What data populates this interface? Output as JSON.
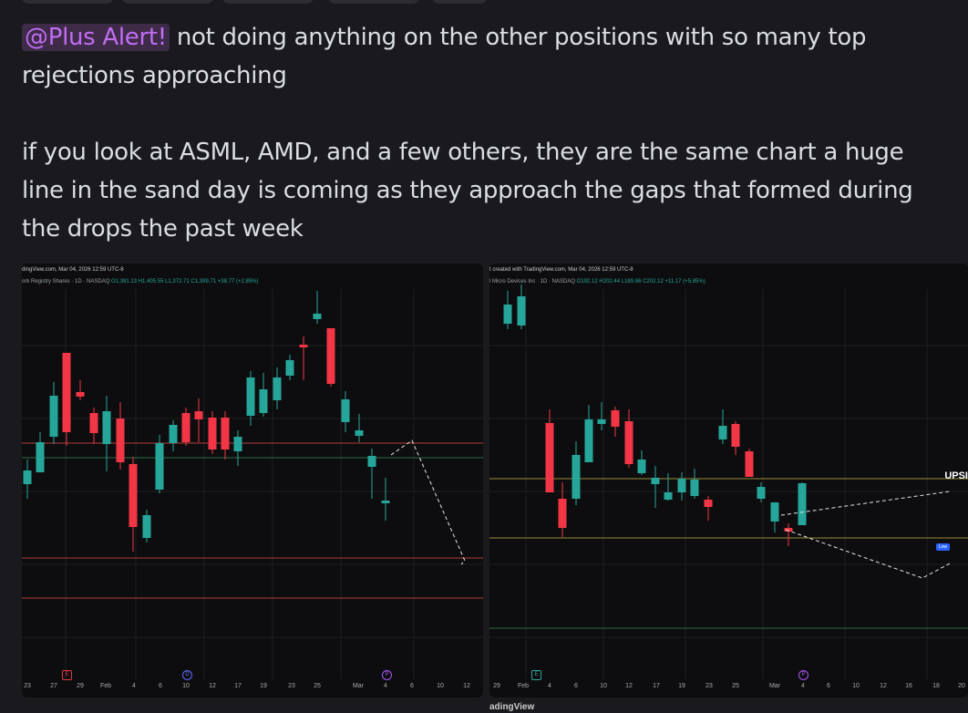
{
  "message": {
    "mention": "@Plus Alert!",
    "line1_rest": " not doing anything on the other positions with so many top rejections approaching",
    "line2": "if you look at ASML, AMD, and a few others, they are the same chart a huge line in the sand day is coming as they approach the gaps that formed during the drops the past week"
  },
  "chart1": {
    "header_line1": "dingView.com, Mar 04, 2026 12:59 UTC-8",
    "header_line2_name": "ork Registry Shares · 1D · NASDAQ",
    "header_line2_ohlc": "O1,391.13 H1,405.55 L1,372.71 C1,399.71 +38.77 (+2.85%)",
    "x_labels": [
      "23",
      "27",
      "29",
      "Feb",
      "4",
      "6",
      "10",
      "12",
      "17",
      "19",
      "23",
      "25",
      "Mar",
      "4",
      "6",
      "10",
      "12"
    ],
    "event_icons": [
      "E",
      "D",
      "P"
    ]
  },
  "chart2": {
    "header_line1": "t created with TradingView.com, Mar 04, 2026 12:59 UTC-8",
    "header_line2_name": "l Micro Devices Inc · 1D · NASDAQ",
    "header_line2_ohlc": "O192.12 H202.44 L189.86 C202.12 +11.17 (+5.85%)",
    "x_labels": [
      "29",
      "Feb",
      "4",
      "6",
      "10",
      "12",
      "17",
      "19",
      "23",
      "25",
      "Mar",
      "4",
      "6",
      "10",
      "12",
      "16",
      "18",
      "20"
    ],
    "event_icons": [
      "E",
      "P"
    ],
    "line_label": "UPSI",
    "low_badge": "Low",
    "watermark": "adingView"
  },
  "colors": {
    "bull": "#26a69a",
    "bear": "#f23645",
    "mention": "#c26cf3",
    "background": "#1a1a1e"
  }
}
